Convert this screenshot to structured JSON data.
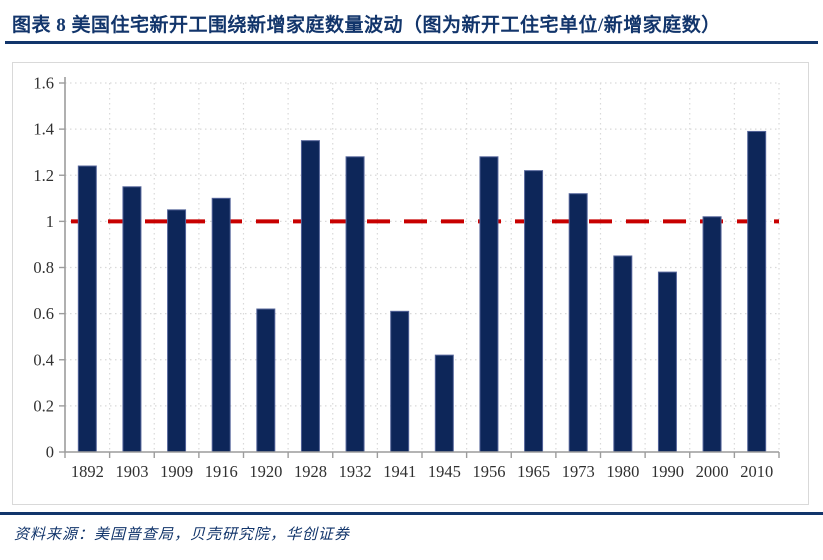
{
  "header": {
    "title": "图表 8  美国住宅新开工围绕新增家庭数量波动（图为新开工住宅单位/新增家庭数）"
  },
  "footer": {
    "source": "资料来源：美国普查局，贝壳研究院，华创证券"
  },
  "colors": {
    "navy": "#12356b",
    "bar_fill": "#0d2659",
    "bar_edge": "#55659a",
    "reference_line": "#c80000",
    "gridline": "#d9d9d9",
    "axis": "#9c9c9c",
    "tick_label": "#303030",
    "chart_border": "#d9d9d9"
  },
  "chart_data": {
    "type": "bar",
    "title": "图表 8  美国住宅新开工围绕新增家庭数量波动（图为新开工住宅单位/新增家庭数）",
    "categories": [
      "1892",
      "1903",
      "1909",
      "1916",
      "1920",
      "1928",
      "1932",
      "1941",
      "1945",
      "1956",
      "1965",
      "1973",
      "1980",
      "1990",
      "2000",
      "2010"
    ],
    "values": [
      1.24,
      1.15,
      1.05,
      1.1,
      0.62,
      1.35,
      1.28,
      0.61,
      0.42,
      1.28,
      1.22,
      1.12,
      0.85,
      0.78,
      1.02,
      1.39
    ],
    "series_name": "新开工住宅单位/新增家庭数",
    "xlabel": "",
    "ylabel": "",
    "ylim": [
      0,
      1.6
    ],
    "ytick_step": 0.2,
    "ytick_labels": [
      "0",
      "0.2",
      "0.4",
      "0.6",
      "0.8",
      "1",
      "1.2",
      "1.4",
      "1.6"
    ],
    "reference_line": {
      "y": 1.0,
      "style": "dashed"
    },
    "grid": true,
    "legend_position": "none"
  }
}
